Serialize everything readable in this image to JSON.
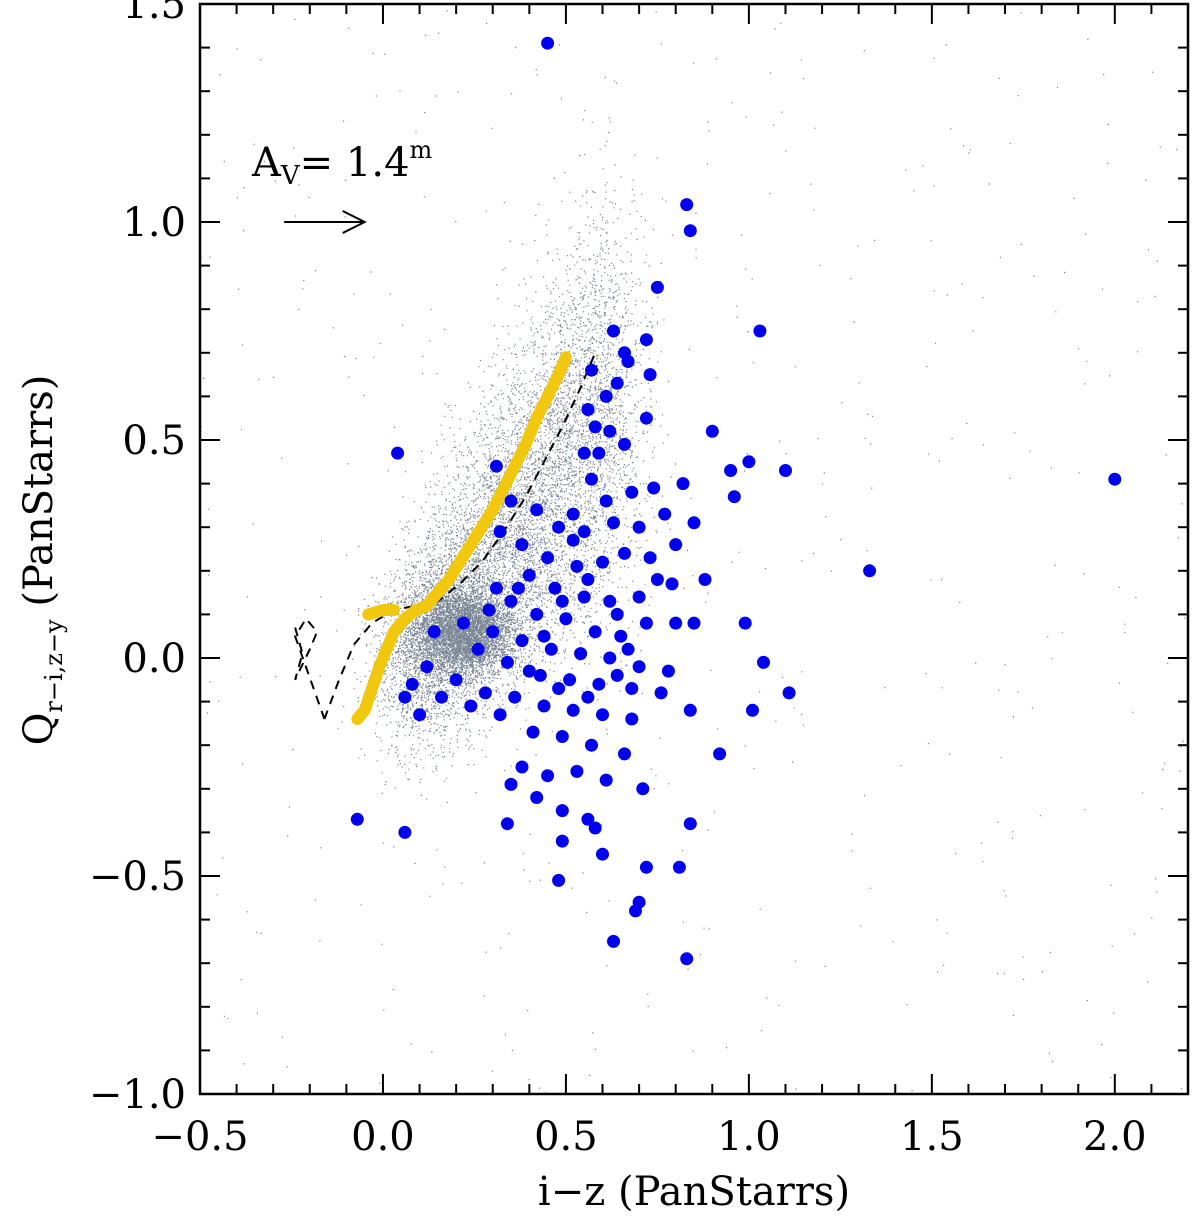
{
  "chart_data": {
    "type": "scatter",
    "title": "",
    "xlabel": "i−z (PanStarrs)",
    "ylabel_main": "Q",
    "ylabel_sub": "r−i,z−y",
    "ylabel_rest": " (PanStarrs)",
    "xlim": [
      -0.5,
      2.2
    ],
    "ylim": [
      -1.0,
      1.5
    ],
    "x_ticks": [
      -0.5,
      0.0,
      0.5,
      1.0,
      1.5,
      2.0
    ],
    "x_tick_labels": [
      "−0.5",
      "0.0",
      "0.5",
      "1.0",
      "1.5",
      "2.0"
    ],
    "y_ticks": [
      -1.0,
      -0.5,
      0.0,
      0.5,
      1.0,
      1.5
    ],
    "y_tick_labels": [
      "−1.0",
      "−0.5",
      "0.0",
      "0.5",
      "1.0",
      "1.5"
    ],
    "grid": false,
    "colors": {
      "field_stars": "#7a8594",
      "candidates": "#0000ee",
      "sequence": "#f2c80f",
      "dashed": "#000000"
    },
    "annotation": {
      "text_main": "A",
      "text_sub": "V",
      "text_value": "=  1.4",
      "text_sup": "m",
      "arrow_from": [
        -0.27,
        1.0
      ],
      "arrow_to": [
        -0.05,
        1.0
      ]
    },
    "series": [
      {
        "role": "candidates",
        "points": [
          [
            0.45,
            1.41
          ],
          [
            0.83,
            1.04
          ],
          [
            0.84,
            0.98
          ],
          [
            0.75,
            0.85
          ],
          [
            1.03,
            0.75
          ],
          [
            0.63,
            0.75
          ],
          [
            0.72,
            0.73
          ],
          [
            0.66,
            0.7
          ],
          [
            0.57,
            0.66
          ],
          [
            0.67,
            0.68
          ],
          [
            0.61,
            0.6
          ],
          [
            0.64,
            0.63
          ],
          [
            0.73,
            0.65
          ],
          [
            0.56,
            0.57
          ],
          [
            0.58,
            0.53
          ],
          [
            0.62,
            0.52
          ],
          [
            0.72,
            0.55
          ],
          [
            0.55,
            0.47
          ],
          [
            0.66,
            0.49
          ],
          [
            0.04,
            0.47
          ],
          [
            0.31,
            0.44
          ],
          [
            0.9,
            0.52
          ],
          [
            0.95,
            0.43
          ],
          [
            1.0,
            0.45
          ],
          [
            1.1,
            0.43
          ],
          [
            0.82,
            0.4
          ],
          [
            0.57,
            0.41
          ],
          [
            0.61,
            0.36
          ],
          [
            0.68,
            0.38
          ],
          [
            0.74,
            0.39
          ],
          [
            0.96,
            0.37
          ],
          [
            0.35,
            0.36
          ],
          [
            0.42,
            0.34
          ],
          [
            0.48,
            0.3
          ],
          [
            0.52,
            0.27
          ],
          [
            0.55,
            0.29
          ],
          [
            0.63,
            0.31
          ],
          [
            0.7,
            0.3
          ],
          [
            0.77,
            0.33
          ],
          [
            0.85,
            0.31
          ],
          [
            0.32,
            0.29
          ],
          [
            0.38,
            0.26
          ],
          [
            0.45,
            0.23
          ],
          [
            0.53,
            0.21
          ],
          [
            0.6,
            0.22
          ],
          [
            0.66,
            0.24
          ],
          [
            0.73,
            0.23
          ],
          [
            0.8,
            0.26
          ],
          [
            0.4,
            0.19
          ],
          [
            0.47,
            0.16
          ],
          [
            0.55,
            0.14
          ],
          [
            0.62,
            0.13
          ],
          [
            0.7,
            0.14
          ],
          [
            0.79,
            0.17
          ],
          [
            0.88,
            0.18
          ],
          [
            1.33,
            0.2
          ],
          [
            2.0,
            0.41
          ],
          [
            0.35,
            0.13
          ],
          [
            0.42,
            0.1
          ],
          [
            0.5,
            0.09
          ],
          [
            0.58,
            0.06
          ],
          [
            0.65,
            0.05
          ],
          [
            0.72,
            0.08
          ],
          [
            0.8,
            0.08
          ],
          [
            0.99,
            0.08
          ],
          [
            0.3,
            0.06
          ],
          [
            0.38,
            0.04
          ],
          [
            0.46,
            0.02
          ],
          [
            0.54,
            0.01
          ],
          [
            0.62,
            0.0
          ],
          [
            0.7,
            -0.02
          ],
          [
            0.78,
            -0.03
          ],
          [
            1.04,
            -0.01
          ],
          [
            0.26,
            0.02
          ],
          [
            0.34,
            -0.01
          ],
          [
            0.43,
            -0.04
          ],
          [
            0.51,
            -0.05
          ],
          [
            0.59,
            -0.06
          ],
          [
            0.68,
            -0.07
          ],
          [
            0.76,
            -0.08
          ],
          [
            0.12,
            -0.02
          ],
          [
            0.08,
            -0.06
          ],
          [
            0.2,
            -0.05
          ],
          [
            0.28,
            -0.08
          ],
          [
            0.36,
            -0.09
          ],
          [
            0.44,
            -0.11
          ],
          [
            0.52,
            -0.12
          ],
          [
            0.6,
            -0.13
          ],
          [
            0.68,
            -0.14
          ],
          [
            1.11,
            -0.08
          ],
          [
            0.06,
            -0.09
          ],
          [
            0.1,
            -0.13
          ],
          [
            0.16,
            -0.09
          ],
          [
            0.24,
            -0.11
          ],
          [
            0.32,
            -0.13
          ],
          [
            0.41,
            -0.17
          ],
          [
            0.49,
            -0.18
          ],
          [
            0.57,
            -0.2
          ],
          [
            0.66,
            -0.22
          ],
          [
            0.84,
            -0.12
          ],
          [
            1.01,
            -0.12
          ],
          [
            0.92,
            -0.22
          ],
          [
            0.38,
            -0.25
          ],
          [
            0.45,
            -0.27
          ],
          [
            0.53,
            -0.26
          ],
          [
            0.61,
            -0.28
          ],
          [
            0.71,
            -0.3
          ],
          [
            0.35,
            -0.29
          ],
          [
            0.42,
            -0.32
          ],
          [
            0.49,
            -0.35
          ],
          [
            0.56,
            -0.37
          ],
          [
            0.34,
            -0.38
          ],
          [
            0.58,
            -0.39
          ],
          [
            0.84,
            -0.38
          ],
          [
            0.49,
            -0.42
          ],
          [
            0.6,
            -0.45
          ],
          [
            0.72,
            -0.48
          ],
          [
            0.81,
            -0.48
          ],
          [
            0.48,
            -0.51
          ],
          [
            0.7,
            -0.56
          ],
          [
            0.69,
            -0.58
          ],
          [
            0.63,
            -0.65
          ],
          [
            0.83,
            -0.69
          ],
          [
            -0.07,
            -0.37
          ],
          [
            0.06,
            -0.4
          ],
          [
            0.14,
            0.06
          ],
          [
            0.22,
            0.08
          ],
          [
            0.29,
            0.11
          ],
          [
            0.37,
            0.16
          ],
          [
            0.44,
            0.05
          ],
          [
            0.49,
            0.13
          ],
          [
            0.56,
            0.18
          ],
          [
            0.64,
            0.1
          ],
          [
            0.4,
            -0.03
          ],
          [
            0.48,
            -0.07
          ],
          [
            0.56,
            -0.09
          ],
          [
            0.64,
            -0.04
          ],
          [
            0.31,
            0.16
          ],
          [
            0.52,
            0.33
          ],
          [
            0.59,
            0.47
          ],
          [
            0.85,
            0.08
          ],
          [
            0.75,
            0.18
          ],
          [
            0.67,
            0.02
          ]
        ]
      }
    ],
    "sequence_curve": [
      [
        -0.07,
        -0.14
      ],
      [
        -0.05,
        -0.12
      ],
      [
        -0.03,
        -0.07
      ],
      [
        -0.01,
        -0.02
      ],
      [
        0.01,
        0.02
      ],
      [
        0.03,
        0.06
      ],
      [
        0.06,
        0.09
      ],
      [
        0.09,
        0.11
      ],
      [
        0.12,
        0.12
      ],
      [
        0.15,
        0.15
      ],
      [
        0.18,
        0.18
      ],
      [
        0.21,
        0.22
      ],
      [
        0.24,
        0.26
      ],
      [
        0.27,
        0.3
      ],
      [
        0.3,
        0.34
      ],
      [
        0.33,
        0.39
      ],
      [
        0.36,
        0.44
      ],
      [
        0.39,
        0.49
      ],
      [
        0.42,
        0.55
      ],
      [
        0.45,
        0.6
      ],
      [
        0.48,
        0.65
      ],
      [
        0.5,
        0.69
      ]
    ],
    "sequence_branch": [
      [
        -0.04,
        0.1
      ],
      [
        0.0,
        0.11
      ],
      [
        0.03,
        0.11
      ]
    ],
    "dashed_curve": [
      [
        -0.16,
        -0.14
      ],
      [
        -0.12,
        -0.05
      ],
      [
        -0.08,
        0.03
      ],
      [
        -0.03,
        0.08
      ],
      [
        0.03,
        0.11
      ],
      [
        0.09,
        0.12
      ],
      [
        0.15,
        0.13
      ],
      [
        0.21,
        0.17
      ],
      [
        0.27,
        0.22
      ],
      [
        0.33,
        0.29
      ],
      [
        0.39,
        0.37
      ],
      [
        0.44,
        0.45
      ],
      [
        0.49,
        0.53
      ],
      [
        0.54,
        0.62
      ],
      [
        0.58,
        0.7
      ]
    ],
    "dashed_loop": [
      [
        -0.24,
        0.07
      ],
      [
        -0.22,
        0.01
      ],
      [
        -0.24,
        -0.05
      ],
      [
        -0.2,
        0.02
      ],
      [
        -0.18,
        0.06
      ],
      [
        -0.21,
        0.09
      ],
      [
        -0.24,
        0.05
      ],
      [
        -0.16,
        -0.14
      ]
    ]
  }
}
